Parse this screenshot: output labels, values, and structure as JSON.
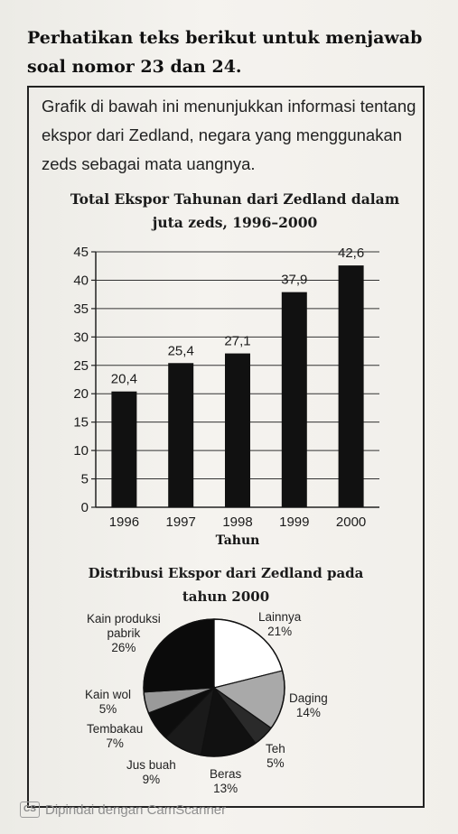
{
  "heading": "Perhatikan teks berikut untuk menjawab soal nomor 23 dan 24.",
  "intro": "Grafik di bawah ini menunjukkan informasi tentang ekspor dari Zedland, negara yang menggunakan zeds sebagai mata uangnya.",
  "chart_data": [
    {
      "type": "bar",
      "title": "Total Ekspor Tahunan dari Zedland dalam juta zeds, 1996–2000",
      "categories": [
        "1996",
        "1997",
        "1998",
        "1999",
        "2000"
      ],
      "values": [
        20.4,
        25.4,
        27.1,
        37.9,
        42.6
      ],
      "data_labels": [
        "20,4",
        "25,4",
        "27,1",
        "37,9",
        "42,6"
      ],
      "xlabel": "Tahun",
      "ylabel": "",
      "ylim": [
        0,
        45
      ],
      "yticks": [
        0,
        5,
        10,
        15,
        20,
        25,
        30,
        35,
        40,
        45
      ],
      "grid": true,
      "bar_color": "#111111"
    },
    {
      "type": "pie",
      "title": "Distribusi Ekspor dari Zedland pada tahun 2000",
      "slices": [
        {
          "name": "Lainnya",
          "value": 21,
          "label": "21%",
          "color": "#ffffff"
        },
        {
          "name": "Daging",
          "value": 14,
          "label": "14%",
          "color": "#a9a9a9"
        },
        {
          "name": "Teh",
          "value": 5,
          "label": "5%",
          "color": "#2a2a2a"
        },
        {
          "name": "Beras",
          "value": 13,
          "label": "13%",
          "color": "#111111"
        },
        {
          "name": "Jus buah",
          "value": 9,
          "label": "9%",
          "color": "#1a1a1a"
        },
        {
          "name": "Tembakau",
          "value": 7,
          "label": "7%",
          "color": "#0d0d0d"
        },
        {
          "name": "Kain wol",
          "value": 5,
          "label": "5%",
          "color": "#9a9a9a"
        },
        {
          "name": "Kain produksi pabrik",
          "value": 26,
          "label": "26%",
          "color": "#0b0b0b"
        }
      ]
    }
  ],
  "watermark": {
    "icon": "cs-scan-icon",
    "icon_text": "CS",
    "text": "Dipindai dengan CamScanner"
  }
}
